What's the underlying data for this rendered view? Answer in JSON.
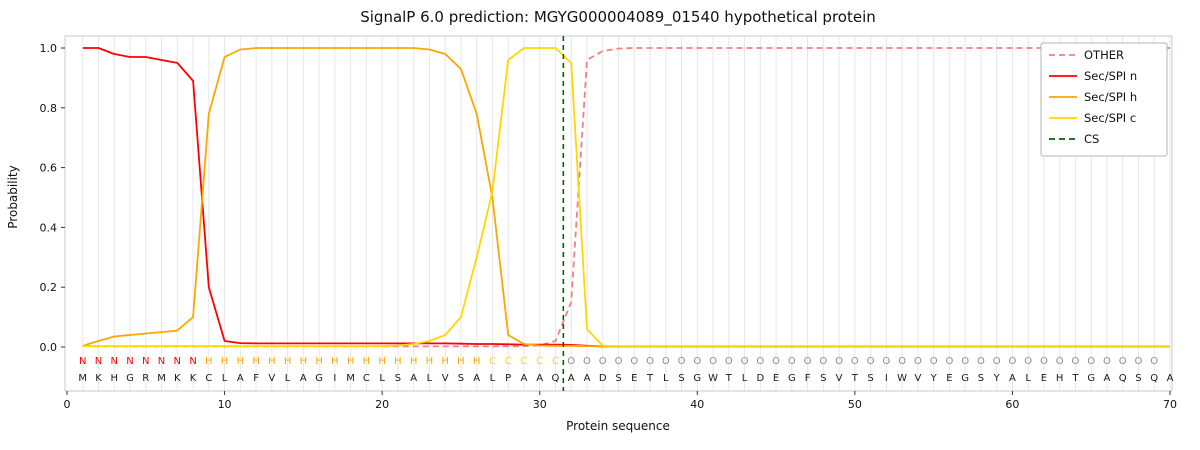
{
  "chart_data": {
    "type": "line",
    "title": "SignalP 6.0 prediction: MGYG000004089_01540 hypothetical protein",
    "xlabel": "Protein sequence",
    "ylabel": "Probability",
    "xlim": [
      -0.2,
      70.2
    ],
    "ylim": [
      -0.15,
      1.05
    ],
    "x_ticks": [
      0,
      10,
      20,
      30,
      40,
      50,
      60,
      70
    ],
    "y_ticks": [
      0.0,
      0.2,
      0.4,
      0.6,
      0.8,
      1.0
    ],
    "grid": "vertical light line at every residue position, no horizontal grid",
    "legend_position": "upper right",
    "sequence": "MKHGRMKKCLAFVLAGIMCLSALVSALPAAQAADSETLSGWTLDEGFSVTSIWVYEGSYALEHTGAQSQA",
    "regions": "NNNNNNNNHHHHHHHHHHHHHHHHHHCCCCCOOOOOOOOOOOOOOOOOOOOOOOOOOOOOOOOOOOOOO",
    "region_colors": {
      "N": "#ff0000",
      "H": "#ffa500",
      "C": "#ffd700",
      "O": "#8c8c8c"
    },
    "sequence_color": "#1a1a1a",
    "style": {
      "grid_color": "#e7e7e7",
      "spine_color": "#c9c9c9",
      "tick_color": "#333333",
      "text_color": "#111111",
      "background": "#ffffff"
    },
    "series": [
      {
        "name": "OTHER",
        "color": "#f08080",
        "dash": "dashed",
        "values": [
          0.004,
          0.002,
          0.002,
          0.002,
          0.002,
          0.002,
          0.002,
          0.002,
          0.002,
          0.002,
          0.002,
          0.002,
          0.002,
          0.002,
          0.002,
          0.002,
          0.002,
          0.002,
          0.002,
          0.002,
          0.002,
          0.002,
          0.002,
          0.002,
          0.002,
          0.002,
          0.002,
          0.002,
          0.003,
          0.005,
          0.02,
          0.15,
          0.96,
          0.99,
          0.998,
          1.0,
          1.0,
          1.0,
          1.0,
          1.0,
          1.0,
          1.0,
          1.0,
          1.0,
          1.0,
          1.0,
          1.0,
          1.0,
          1.0,
          1.0,
          1.0,
          1.0,
          1.0,
          1.0,
          1.0,
          1.0,
          1.0,
          1.0,
          1.0,
          1.0,
          1.0,
          1.0,
          1.0,
          1.0,
          1.0,
          1.0,
          1.0,
          1.0,
          1.0,
          1.0
        ]
      },
      {
        "name": "Sec/SPI n",
        "color": "#ff0000",
        "dash": "solid",
        "values": [
          1.0,
          1.0,
          0.98,
          0.97,
          0.97,
          0.96,
          0.95,
          0.89,
          0.2,
          0.02,
          0.013,
          0.012,
          0.012,
          0.012,
          0.012,
          0.012,
          0.012,
          0.012,
          0.012,
          0.012,
          0.012,
          0.012,
          0.012,
          0.012,
          0.011,
          0.01,
          0.01,
          0.009,
          0.008,
          0.008,
          0.008,
          0.007,
          0.004,
          0.002,
          0.002,
          0.002,
          0.002,
          0.002,
          0.002,
          0.002,
          0.002,
          0.002,
          0.002,
          0.002,
          0.002,
          0.002,
          0.002,
          0.002,
          0.002,
          0.002,
          0.002,
          0.002,
          0.002,
          0.002,
          0.002,
          0.002,
          0.002,
          0.002,
          0.002,
          0.002,
          0.002,
          0.002,
          0.002,
          0.002,
          0.002,
          0.002,
          0.002,
          0.002,
          0.002,
          0.002
        ]
      },
      {
        "name": "Sec/SPI h",
        "color": "#ffa500",
        "dash": "solid",
        "values": [
          0.004,
          0.02,
          0.035,
          0.04,
          0.045,
          0.05,
          0.055,
          0.1,
          0.78,
          0.97,
          0.995,
          1.0,
          1.0,
          1.0,
          1.0,
          1.0,
          1.0,
          1.0,
          1.0,
          1.0,
          1.0,
          1.0,
          0.995,
          0.98,
          0.93,
          0.78,
          0.5,
          0.04,
          0.01,
          0.005,
          0.004,
          0.004,
          0.003,
          0.002,
          0.002,
          0.002,
          0.002,
          0.002,
          0.002,
          0.002,
          0.002,
          0.002,
          0.002,
          0.002,
          0.002,
          0.002,
          0.002,
          0.002,
          0.002,
          0.002,
          0.002,
          0.002,
          0.002,
          0.002,
          0.002,
          0.002,
          0.002,
          0.002,
          0.002,
          0.002,
          0.002,
          0.002,
          0.002,
          0.002,
          0.002,
          0.002,
          0.002,
          0.002,
          0.002,
          0.002
        ]
      },
      {
        "name": "Sec/SPI c",
        "color": "#ffd700",
        "dash": "solid",
        "values": [
          0.003,
          0.003,
          0.003,
          0.003,
          0.003,
          0.003,
          0.003,
          0.003,
          0.003,
          0.003,
          0.003,
          0.003,
          0.003,
          0.003,
          0.003,
          0.003,
          0.003,
          0.003,
          0.003,
          0.003,
          0.005,
          0.01,
          0.02,
          0.04,
          0.1,
          0.3,
          0.52,
          0.96,
          1.0,
          1.0,
          1.0,
          0.95,
          0.06,
          0.004,
          0.003,
          0.003,
          0.003,
          0.003,
          0.003,
          0.003,
          0.003,
          0.003,
          0.003,
          0.003,
          0.003,
          0.003,
          0.003,
          0.003,
          0.003,
          0.003,
          0.003,
          0.003,
          0.003,
          0.003,
          0.003,
          0.003,
          0.003,
          0.003,
          0.003,
          0.003,
          0.003,
          0.003,
          0.003,
          0.003,
          0.003,
          0.003,
          0.003,
          0.003,
          0.003,
          0.003
        ]
      },
      {
        "name": "CS",
        "color": "#006400",
        "dash": "dashed",
        "type": "vline",
        "x": 31.5
      }
    ]
  }
}
